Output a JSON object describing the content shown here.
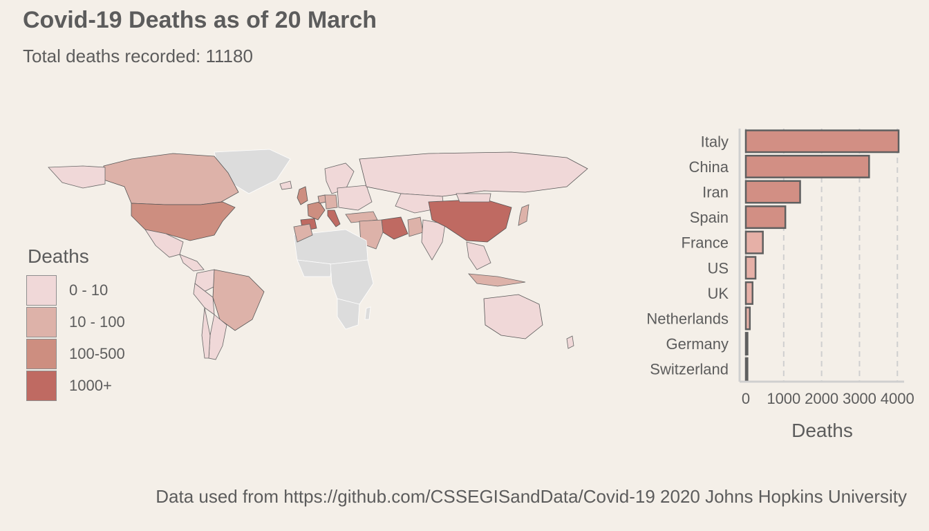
{
  "title": "Covid-19 Deaths as of 20 March",
  "subtitle": "Total deaths recorded: 11180",
  "caption": "Data used from  https://github.com/CSSEGISandData/Covid-19 2020 Johns Hopkins University",
  "legend": {
    "title": "Deaths",
    "items": [
      {
        "label": "0 - 10",
        "color": "#f0d8d8"
      },
      {
        "label": "10 - 100",
        "color": "#ddb2a9"
      },
      {
        "label": "100-500",
        "color": "#cd8e80"
      },
      {
        "label": "1000+",
        "color": "#bf6a62"
      }
    ]
  },
  "colors": {
    "background": "#f4efe8",
    "no_data": "#dcdcdc",
    "bar_fill": "#d28f84",
    "bar_light": "#e6b0a7",
    "bar_outline": "#5f5f5f",
    "grid": "#cfcfcf"
  },
  "chart_data": [
    {
      "type": "map",
      "legend_title": "Deaths",
      "classes": [
        "0 - 10",
        "10 - 100",
        "100-500",
        "1000+"
      ],
      "countries": [
        {
          "name": "China",
          "class": "1000+"
        },
        {
          "name": "Italy",
          "class": "1000+"
        },
        {
          "name": "Iran",
          "class": "1000+"
        },
        {
          "name": "Spain",
          "class": "1000+"
        },
        {
          "name": "France",
          "class": "100-500"
        },
        {
          "name": "US",
          "class": "100-500"
        },
        {
          "name": "UK",
          "class": "100-500"
        },
        {
          "name": "Netherlands",
          "class": "10 - 100"
        },
        {
          "name": "Canada",
          "class": "10 - 100"
        },
        {
          "name": "Brazil",
          "class": "10 - 100"
        },
        {
          "name": "Russia",
          "class": "0 - 10"
        },
        {
          "name": "Australia",
          "class": "0 - 10"
        }
      ]
    },
    {
      "type": "bar",
      "orientation": "horizontal",
      "categories": [
        "Italy",
        "China",
        "Iran",
        "Spain",
        "France",
        "US",
        "UK",
        "Netherlands",
        "Germany",
        "Switzerland"
      ],
      "values": [
        4032,
        3253,
        1433,
        1043,
        450,
        256,
        177,
        106,
        44,
        43
      ],
      "xlabel": "Deaths",
      "ylabel": "",
      "xticks": [
        0,
        1000,
        2000,
        3000,
        4000
      ],
      "xlim": [
        0,
        4032
      ],
      "grid": "vertical dashed"
    }
  ]
}
